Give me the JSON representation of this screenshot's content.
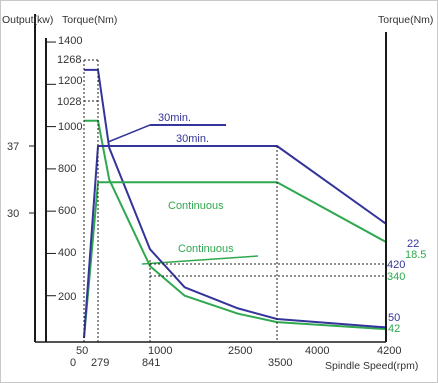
{
  "chart_data": {
    "type": "line",
    "axis_titles": {
      "output_left": "Output(kw)",
      "torque_left": "Torque(Nm)",
      "torque_right": "Torque(Nm)",
      "x": "Spindle Speed(rpm)"
    },
    "output_ticks": [
      "37",
      "30"
    ],
    "torque_ticks": [
      "1400",
      "1268",
      "1200",
      "1028",
      "1000",
      "800",
      "600",
      "400",
      "200"
    ],
    "x_ticks_row1": [
      "50",
      "1000",
      "2500",
      "4000",
      "4200"
    ],
    "x_ticks_row2": [
      "0",
      "279",
      "841",
      "3500"
    ],
    "right_value_labels": [
      {
        "text": "22",
        "series": "torque-30min"
      },
      {
        "text": "18.5",
        "series": "torque-continuous"
      },
      {
        "text": "420",
        "series": "output-30min"
      },
      {
        "text": "340",
        "series": "output-continuous"
      },
      {
        "text": "50",
        "series": "output-30min"
      },
      {
        "text": "42",
        "series": "output-continuous"
      }
    ],
    "series": [
      {
        "name": "30min.",
        "kind": "output",
        "x": [
          50,
          279,
          3500,
          4200
        ],
        "y": [
          0,
          37,
          37,
          22
        ]
      },
      {
        "name": "Continuous",
        "kind": "output",
        "x": [
          50,
          279,
          3500,
          4200
        ],
        "y": [
          0,
          30,
          30,
          18.5
        ]
      },
      {
        "name": "30min.",
        "kind": "torque",
        "x": [
          0,
          279,
          400,
          841,
          1500,
          2500,
          3500,
          4200
        ],
        "y": [
          1268,
          1268,
          900,
          420,
          240,
          140,
          90,
          50
        ]
      },
      {
        "name": "Continuous",
        "kind": "torque",
        "x": [
          0,
          279,
          400,
          841,
          1500,
          2500,
          3500,
          4200
        ],
        "y": [
          1028,
          1028,
          750,
          340,
          200,
          115,
          75,
          42
        ]
      }
    ],
    "labels": [
      "30min.",
      "30min.",
      "Continuous",
      "Continuous"
    ],
    "colors": {
      "30min.": "#34349a",
      "Continuous": "#2fa84f",
      "axis": "#1a1a1a",
      "guide": "#222222"
    }
  }
}
